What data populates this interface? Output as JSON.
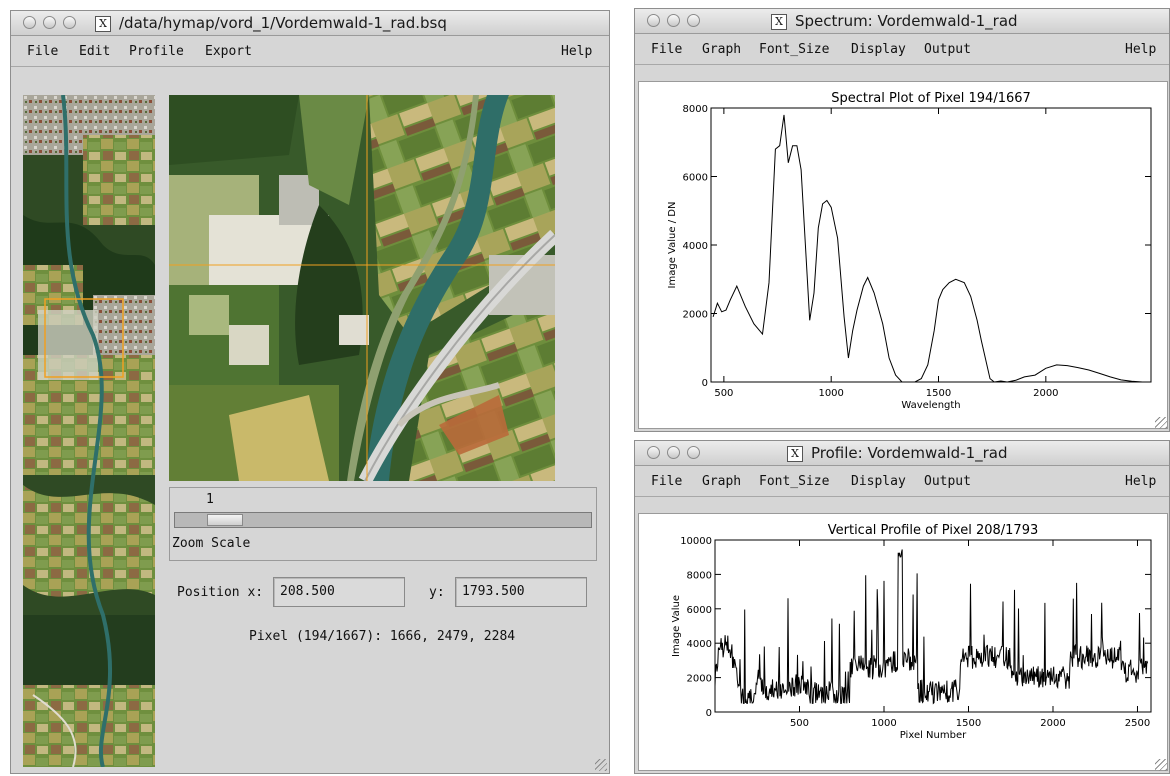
{
  "main_window": {
    "title": "/data/hymap/vord_1/Vordemwald-1_rad.bsq",
    "menu": [
      "File",
      "Edit",
      "Profile",
      "Export"
    ],
    "help": "Help",
    "zoom": {
      "value": "1",
      "label": "Zoom Scale",
      "fraction": 0.08
    },
    "position": {
      "x_label": "Position x:",
      "x_value": "208.500",
      "y_label": "y:",
      "y_value": "1793.500"
    },
    "pixel_info": "Pixel (194/1667): 1666, 2479, 2284"
  },
  "spectrum_window": {
    "title": "Spectrum: Vordemwald-1_rad",
    "menu": [
      "File",
      "Graph",
      "Font_Size",
      "Display",
      "Output"
    ],
    "help": "Help"
  },
  "profile_window": {
    "title": "Profile: Vordemwald-1_rad",
    "menu": [
      "File",
      "Graph",
      "Font_Size",
      "Display",
      "Output"
    ],
    "help": "Help"
  },
  "chart_data": [
    {
      "type": "line",
      "title": "Spectral Plot of Pixel 194/1667",
      "xlabel": "Wavelength",
      "ylabel": "Image Value / DN",
      "xlim": [
        440,
        2490
      ],
      "ylim": [
        0,
        8000
      ],
      "xticks": [
        500,
        1000,
        1500,
        2000
      ],
      "yticks": [
        0,
        2000,
        4000,
        6000,
        8000
      ],
      "x": [
        450,
        470,
        490,
        510,
        530,
        560,
        600,
        640,
        680,
        710,
        740,
        760,
        780,
        800,
        820,
        840,
        860,
        880,
        900,
        920,
        940,
        960,
        980,
        1000,
        1030,
        1060,
        1080,
        1100,
        1120,
        1150,
        1170,
        1200,
        1240,
        1270,
        1300,
        1330,
        1360,
        1390,
        1420,
        1450,
        1480,
        1500,
        1520,
        1550,
        1580,
        1620,
        1650,
        1680,
        1700,
        1740,
        1760,
        1790,
        1820,
        1860,
        1900,
        1950,
        2000,
        2050,
        2100,
        2150,
        2200,
        2250,
        2300,
        2350,
        2400,
        2450
      ],
      "values": [
        1900,
        2300,
        2050,
        2100,
        2400,
        2800,
        2200,
        1700,
        1400,
        2900,
        6800,
        6900,
        7800,
        6400,
        6900,
        6900,
        6200,
        4000,
        1800,
        2600,
        4500,
        5200,
        5300,
        5100,
        4200,
        1900,
        700,
        1500,
        2100,
        2800,
        3050,
        2600,
        1700,
        700,
        200,
        0,
        0,
        0,
        100,
        500,
        1500,
        2400,
        2700,
        2900,
        3000,
        2900,
        2500,
        1800,
        1200,
        100,
        0,
        30,
        0,
        50,
        150,
        200,
        400,
        500,
        480,
        420,
        350,
        250,
        150,
        60,
        20,
        0
      ]
    },
    {
      "type": "line",
      "title": "Vertical Profile of Pixel 208/1793",
      "xlabel": "Pixel Number",
      "ylabel": "Image Value",
      "xlim": [
        0,
        2580
      ],
      "ylim": [
        0,
        10000
      ],
      "xticks": [
        500,
        1000,
        1500,
        2000,
        2500
      ],
      "yticks": [
        0,
        2000,
        4000,
        6000,
        8000,
        10000
      ]
    }
  ]
}
